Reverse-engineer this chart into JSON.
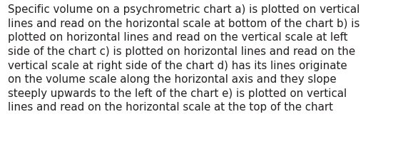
{
  "lines": [
    "Specific volume on a psychrometric chart a) is plotted on vertical",
    "lines and read on the horizontal scale at bottom of the chart b) is",
    "plotted on horizontal lines and read on the vertical scale at left",
    "side of the chart c) is plotted on horizontal lines and read on the",
    "vertical scale at right side of the chart d) has its lines originate",
    "on the volume scale along the horizontal axis and they slope",
    "steeply upwards to the left of the chart e) is plotted on vertical",
    "lines and read on the horizontal scale at the top of the chart"
  ],
  "background_color": "#ffffff",
  "text_color": "#231f20",
  "font_size": 10.8,
  "fig_width": 5.58,
  "fig_height": 2.09,
  "dpi": 100
}
